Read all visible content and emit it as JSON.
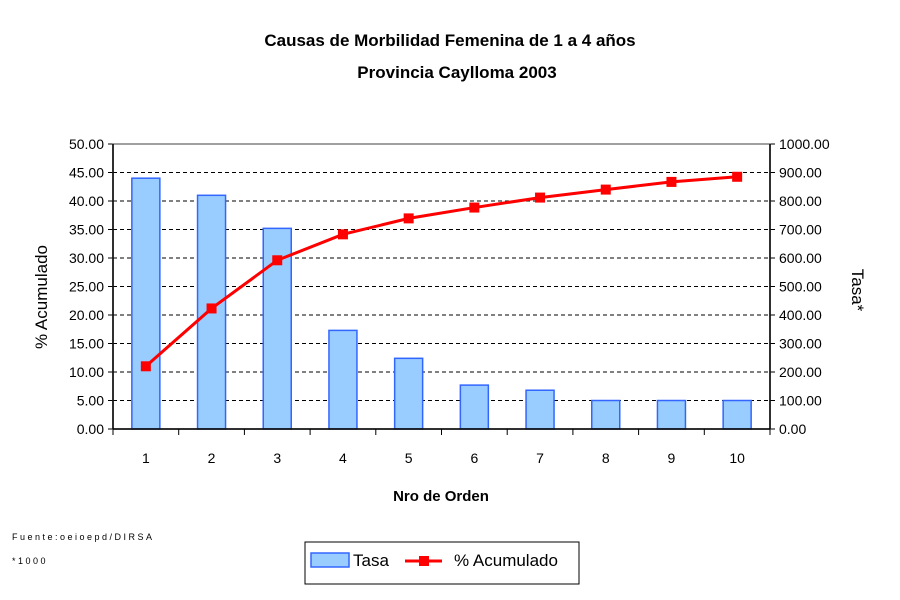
{
  "chart_data": {
    "type": "bar",
    "title": "Causas de Morbilidad Femenina de 1 a 4 años",
    "subtitle": "Provincia Caylloma 2003",
    "xlabel": "Nro de Orden",
    "ylabel_left": "% Acumulado",
    "ylabel_right": "Tasa*",
    "categories": [
      "1",
      "2",
      "3",
      "4",
      "5",
      "6",
      "7",
      "8",
      "9",
      "10"
    ],
    "ylim_left": [
      0,
      50
    ],
    "ylim_right": [
      0,
      1000
    ],
    "yticks_left": [
      "0.00",
      "5.00",
      "10.00",
      "15.00",
      "20.00",
      "25.00",
      "30.00",
      "35.00",
      "40.00",
      "45.00",
      "50.00"
    ],
    "yticks_right": [
      "0.00",
      "100.00",
      "200.00",
      "300.00",
      "400.00",
      "500.00",
      "600.00",
      "700.00",
      "800.00",
      "900.00",
      "1000.00"
    ],
    "grid": "horizontal dashed",
    "legend_position": "bottom",
    "series": [
      {
        "name": "Tasa",
        "type": "bar",
        "axis": "left",
        "color": "#99ccff",
        "edge": "#3366ff",
        "values": [
          44.0,
          41.0,
          35.2,
          17.3,
          12.4,
          7.7,
          6.8,
          5.0,
          5.0,
          5.0
        ]
      },
      {
        "name": "% Acumulado",
        "type": "line",
        "axis": "right",
        "color": "#ff0000",
        "values": [
          220,
          423,
          592,
          683,
          739,
          777,
          812,
          840,
          867,
          885
        ]
      }
    ]
  },
  "footnotes": {
    "source": "Fuente:oeioepd/DIRSA",
    "note": "*1000"
  }
}
